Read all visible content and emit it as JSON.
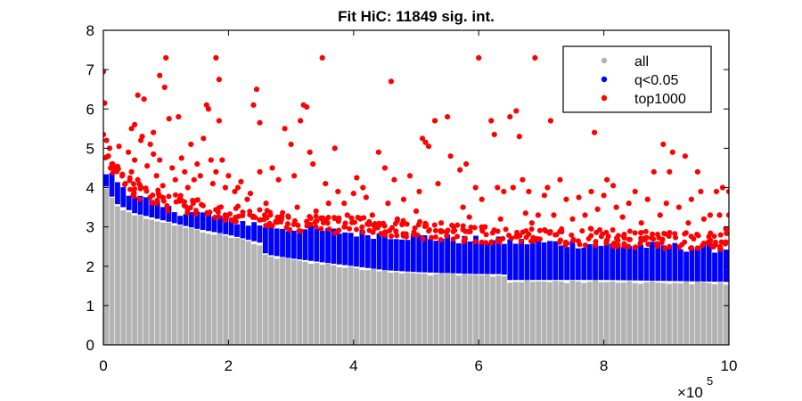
{
  "chart_data": {
    "type": "scatter",
    "title": "Fit HiC: 11849 sig. int.",
    "xlabel": "",
    "ylabel": "",
    "x_exponent_label": "×10",
    "x_exponent_power": "5",
    "xlim": [
      0,
      10
    ],
    "ylim": [
      0,
      8
    ],
    "x_ticks": [
      0,
      2,
      4,
      6,
      8,
      10
    ],
    "x_tick_labels": [
      "0",
      "2",
      "4",
      "6",
      "8",
      "10"
    ],
    "y_ticks": [
      0,
      1,
      2,
      3,
      4,
      5,
      6,
      7,
      8
    ],
    "y_tick_labels": [
      "0",
      "1",
      "2",
      "3",
      "4",
      "5",
      "6",
      "7",
      "8"
    ],
    "grid": false,
    "legend_position": "top-right",
    "series": [
      {
        "name": "all",
        "color": "#b3b3b3",
        "marker": "dot",
        "note_x_scale": "x values in units of 1e5",
        "envelope_top": [
          [
            0.0,
            4.3
          ],
          [
            0.05,
            4.0
          ],
          [
            0.2,
            3.6
          ],
          [
            0.5,
            3.35
          ],
          [
            1.0,
            3.15
          ],
          [
            1.5,
            2.95
          ],
          [
            2.0,
            2.8
          ],
          [
            2.5,
            2.6
          ],
          [
            2.6,
            2.3
          ],
          [
            3.0,
            2.2
          ],
          [
            3.5,
            2.1
          ],
          [
            4.0,
            2.0
          ],
          [
            4.5,
            1.9
          ],
          [
            5.0,
            1.85
          ],
          [
            6.0,
            1.8
          ],
          [
            6.4,
            1.8
          ],
          [
            6.5,
            1.65
          ],
          [
            8.0,
            1.65
          ],
          [
            10.0,
            1.6
          ]
        ]
      },
      {
        "name": "q<0.05",
        "color": "#0000ff",
        "marker": "dot",
        "envelope_top": [
          [
            0.0,
            4.4
          ],
          [
            0.1,
            4.3
          ],
          [
            0.3,
            4.0
          ],
          [
            0.5,
            3.75
          ],
          [
            1.0,
            3.4
          ],
          [
            1.5,
            3.3
          ],
          [
            2.0,
            3.15
          ],
          [
            2.5,
            3.0
          ],
          [
            3.0,
            2.9
          ],
          [
            3.5,
            2.85
          ],
          [
            4.0,
            2.8
          ],
          [
            4.5,
            2.75
          ],
          [
            5.0,
            2.7
          ],
          [
            6.0,
            2.6
          ],
          [
            7.0,
            2.55
          ],
          [
            8.0,
            2.5
          ],
          [
            9.0,
            2.45
          ],
          [
            10.0,
            2.4
          ]
        ]
      },
      {
        "name": "top1000",
        "color": "#ff0000",
        "marker": "dot",
        "points": [
          [
            0.0,
            6.95
          ],
          [
            0.02,
            6.15
          ],
          [
            0.0,
            5.35
          ],
          [
            0.05,
            5.2
          ],
          [
            0.1,
            5.0
          ],
          [
            0.08,
            4.8
          ],
          [
            0.15,
            4.6
          ],
          [
            0.2,
            4.5
          ],
          [
            0.3,
            4.3
          ],
          [
            0.35,
            4.1
          ],
          [
            0.25,
            5.05
          ],
          [
            0.4,
            4.9
          ],
          [
            0.45,
            4.4
          ],
          [
            0.5,
            4.7
          ],
          [
            0.55,
            4.2
          ],
          [
            0.6,
            4.0
          ],
          [
            0.62,
            5.3
          ],
          [
            0.45,
            5.5
          ],
          [
            0.5,
            5.6
          ],
          [
            0.55,
            6.35
          ],
          [
            0.65,
            6.25
          ],
          [
            0.6,
            5.2
          ],
          [
            0.75,
            5.1
          ],
          [
            0.8,
            4.85
          ],
          [
            0.7,
            4.55
          ],
          [
            0.85,
            4.3
          ],
          [
            0.8,
            5.4
          ],
          [
            0.9,
            4.7
          ],
          [
            0.95,
            4.05
          ],
          [
            0.98,
            6.55
          ],
          [
            1.0,
            7.3
          ],
          [
            1.05,
            5.75
          ],
          [
            1.1,
            4.5
          ],
          [
            1.15,
            4.2
          ],
          [
            0.9,
            6.85
          ],
          [
            1.2,
            5.8
          ],
          [
            1.25,
            4.75
          ],
          [
            1.3,
            4.4
          ],
          [
            1.35,
            4.0
          ],
          [
            1.4,
            5.1
          ],
          [
            1.45,
            4.2
          ],
          [
            1.5,
            4.6
          ],
          [
            1.55,
            4.3
          ],
          [
            1.6,
            5.25
          ],
          [
            1.65,
            6.1
          ],
          [
            1.68,
            6.0
          ],
          [
            1.72,
            4.7
          ],
          [
            1.75,
            4.1
          ],
          [
            1.8,
            7.3
          ],
          [
            1.85,
            6.75
          ],
          [
            1.85,
            5.7
          ],
          [
            1.8,
            4.4
          ],
          [
            1.9,
            4.7
          ],
          [
            1.95,
            4.0
          ],
          [
            2.0,
            4.3
          ],
          [
            2.1,
            3.9
          ],
          [
            2.15,
            4.0
          ],
          [
            2.2,
            4.15
          ],
          [
            2.3,
            3.7
          ],
          [
            2.35,
            3.85
          ],
          [
            2.4,
            6.1
          ],
          [
            2.45,
            6.5
          ],
          [
            2.5,
            5.65
          ],
          [
            2.5,
            4.4
          ],
          [
            2.6,
            3.6
          ],
          [
            2.7,
            4.5
          ],
          [
            2.8,
            4.2
          ],
          [
            2.9,
            5.5
          ],
          [
            3.0,
            5.1
          ],
          [
            3.05,
            4.3
          ],
          [
            3.1,
            3.5
          ],
          [
            3.15,
            5.7
          ],
          [
            3.2,
            6.1
          ],
          [
            3.25,
            6.05
          ],
          [
            3.3,
            4.9
          ],
          [
            3.35,
            4.6
          ],
          [
            3.4,
            3.4
          ],
          [
            3.5,
            7.3
          ],
          [
            3.55,
            4.1
          ],
          [
            3.6,
            3.6
          ],
          [
            3.7,
            5.0
          ],
          [
            3.75,
            3.9
          ],
          [
            3.85,
            3.6
          ],
          [
            3.9,
            3.3
          ],
          [
            4.0,
            3.85
          ],
          [
            4.05,
            4.25
          ],
          [
            4.15,
            4.0
          ],
          [
            4.2,
            3.75
          ],
          [
            4.3,
            3.3
          ],
          [
            4.4,
            4.9
          ],
          [
            4.5,
            4.5
          ],
          [
            4.55,
            3.6
          ],
          [
            4.6,
            6.7
          ],
          [
            4.65,
            4.2
          ],
          [
            4.7,
            3.2
          ],
          [
            4.8,
            3.7
          ],
          [
            4.9,
            4.3
          ],
          [
            5.0,
            3.4
          ],
          [
            5.05,
            3.9
          ],
          [
            5.1,
            5.25
          ],
          [
            5.15,
            5.15
          ],
          [
            5.2,
            5.05
          ],
          [
            5.3,
            5.7
          ],
          [
            5.35,
            4.1
          ],
          [
            5.4,
            3.1
          ],
          [
            5.5,
            5.8
          ],
          [
            5.55,
            4.8
          ],
          [
            5.6,
            3.0
          ],
          [
            5.7,
            4.45
          ],
          [
            5.75,
            3.5
          ],
          [
            5.8,
            4.6
          ],
          [
            5.85,
            3.25
          ],
          [
            5.95,
            4.0
          ],
          [
            6.0,
            7.3
          ],
          [
            6.05,
            3.7
          ],
          [
            6.1,
            3.0
          ],
          [
            6.2,
            5.7
          ],
          [
            6.25,
            5.35
          ],
          [
            6.3,
            4.0
          ],
          [
            6.35,
            3.2
          ],
          [
            6.4,
            3.9
          ],
          [
            6.5,
            5.8
          ],
          [
            6.55,
            4.0
          ],
          [
            6.6,
            5.95
          ],
          [
            6.65,
            5.3
          ],
          [
            6.7,
            4.2
          ],
          [
            6.75,
            3.35
          ],
          [
            6.8,
            3.9
          ],
          [
            6.85,
            3.1
          ],
          [
            6.9,
            7.3
          ],
          [
            6.95,
            3.3
          ],
          [
            7.05,
            3.8
          ],
          [
            7.1,
            4.0
          ],
          [
            7.15,
            5.7
          ],
          [
            7.2,
            3.3
          ],
          [
            7.3,
            4.2
          ],
          [
            7.4,
            3.7
          ],
          [
            7.5,
            3.2
          ],
          [
            7.6,
            3.75
          ],
          [
            7.7,
            3.3
          ],
          [
            7.8,
            3.9
          ],
          [
            7.85,
            5.4
          ],
          [
            7.9,
            3.45
          ],
          [
            8.0,
            3.8
          ],
          [
            8.05,
            4.2
          ],
          [
            8.15,
            4.05
          ],
          [
            8.2,
            3.5
          ],
          [
            8.3,
            3.25
          ],
          [
            8.4,
            3.6
          ],
          [
            8.5,
            3.9
          ],
          [
            8.6,
            3.1
          ],
          [
            8.7,
            3.7
          ],
          [
            8.8,
            4.4
          ],
          [
            8.9,
            3.3
          ],
          [
            8.95,
            5.1
          ],
          [
            9.0,
            3.6
          ],
          [
            9.05,
            4.4
          ],
          [
            9.1,
            4.9
          ],
          [
            9.2,
            3.5
          ],
          [
            9.3,
            4.8
          ],
          [
            9.35,
            3.1
          ],
          [
            9.4,
            3.7
          ],
          [
            9.5,
            4.4
          ],
          [
            9.55,
            3.9
          ],
          [
            9.6,
            3.2
          ],
          [
            9.7,
            3.3
          ],
          [
            9.8,
            3.9
          ],
          [
            9.85,
            3.3
          ],
          [
            9.9,
            4.0
          ],
          [
            9.95,
            2.95
          ],
          [
            10.0,
            3.3
          ],
          [
            10.0,
            3.9
          ]
        ]
      }
    ]
  }
}
